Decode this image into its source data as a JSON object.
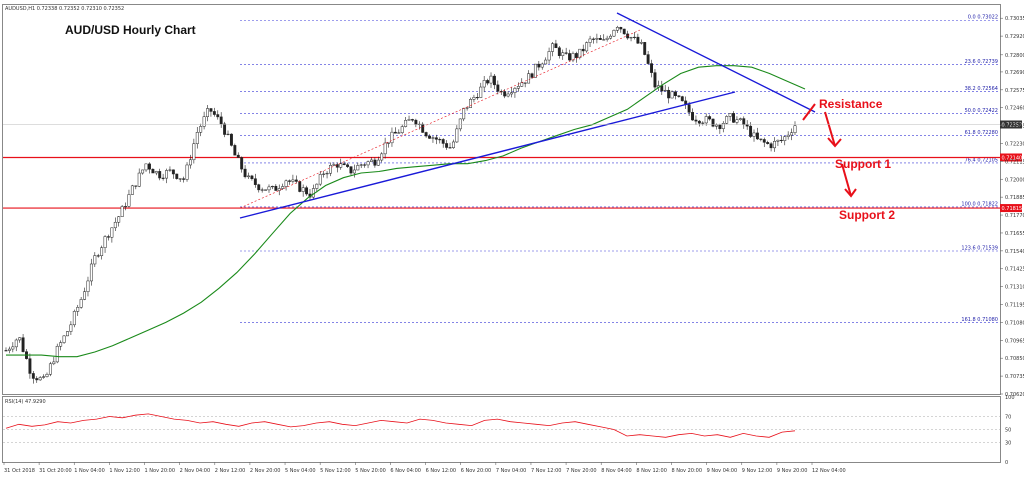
{
  "chart_data": [
    {
      "type": "candlestick",
      "header": "AUDUSD,H1  0.72338 0.72352 0.72310 0.72352",
      "title": "AUD/USD Hourly Chart",
      "ylim": [
        0.7062,
        0.7312
      ],
      "y_ticks": [
        "0.73035",
        "0.72920",
        "0.72800",
        "0.72690",
        "0.72575",
        "0.72460",
        "0.72345",
        "0.72230",
        "0.72115",
        "0.72000",
        "0.71885",
        "0.71770",
        "0.71655",
        "0.71540",
        "0.71425",
        "0.71310",
        "0.71195",
        "0.71080",
        "0.70965",
        "0.70850",
        "0.70735",
        "0.70620"
      ],
      "x_ticks": [
        "31 Oct 2018",
        "31 Oct 20:00",
        "1 Nov 04:00",
        "1 Nov 12:00",
        "1 Nov 20:00",
        "2 Nov 04:00",
        "2 Nov 12:00",
        "2 Nov 20:00",
        "5 Nov 04:00",
        "5 Nov 12:00",
        "5 Nov 20:00",
        "6 Nov 04:00",
        "6 Nov 12:00",
        "6 Nov 20:00",
        "7 Nov 04:00",
        "7 Nov 12:00",
        "7 Nov 20:00",
        "8 Nov 04:00",
        "8 Nov 12:00",
        "8 Nov 20:00",
        "9 Nov 04:00",
        "9 Nov 12:00",
        "9 Nov 20:00",
        "12 Nov 04:00"
      ],
      "current_price": "0.72352",
      "fib_levels": [
        {
          "label": "0.0 0.73022",
          "value": 0.73022
        },
        {
          "label": "23.6 0.72739",
          "value": 0.72739
        },
        {
          "label": "38.2 0.72564",
          "value": 0.72564
        },
        {
          "label": "50.0 0.72422",
          "value": 0.72422
        },
        {
          "label": "61.8 0.72280",
          "value": 0.7228
        },
        {
          "label": "76.4 0.72105",
          "value": 0.72105
        },
        {
          "label": "100.0 0.71822",
          "value": 0.71822
        },
        {
          "label": "123.6 0.71539",
          "value": 0.71539
        },
        {
          "label": "161.8 0.71080",
          "value": 0.7108
        }
      ],
      "support_levels": [
        {
          "label": "Support 1",
          "value": 0.7214,
          "tag": "0.72140"
        },
        {
          "label": "Support 2",
          "value": 0.71815,
          "tag": "0.71815"
        }
      ],
      "resistance_label": "Resistance",
      "close_path": [
        0.709,
        0.7099,
        0.7075,
        0.707,
        0.709,
        0.7105,
        0.7125,
        0.715,
        0.7165,
        0.7178,
        0.7195,
        0.721,
        0.7203,
        0.7205,
        0.72,
        0.723,
        0.7245,
        0.7235,
        0.7215,
        0.72,
        0.7195,
        0.7193,
        0.72,
        0.7195,
        0.719,
        0.7205,
        0.721,
        0.7205,
        0.721,
        0.7212,
        0.7225,
        0.7232,
        0.724,
        0.723,
        0.7225,
        0.722,
        0.7245,
        0.7255,
        0.7265,
        0.7255,
        0.726,
        0.7265,
        0.7275,
        0.7285,
        0.7278,
        0.728,
        0.729,
        0.7288,
        0.73,
        0.7292,
        0.7285,
        0.726,
        0.7255,
        0.725,
        0.724,
        0.7238,
        0.7235,
        0.724,
        0.7235,
        0.7225,
        0.7222,
        0.7225,
        0.7235
      ],
      "ma_path": [
        0.7087,
        0.7087,
        0.7087,
        0.7086,
        0.7086,
        0.7089,
        0.7093,
        0.7098,
        0.7103,
        0.7108,
        0.7114,
        0.7121,
        0.713,
        0.714,
        0.7152,
        0.7165,
        0.7178,
        0.7188,
        0.7196,
        0.7201,
        0.7204,
        0.7205,
        0.7207,
        0.7208,
        0.7209,
        0.721,
        0.721,
        0.7212,
        0.7215,
        0.722,
        0.7224,
        0.7228,
        0.7232,
        0.7235,
        0.724,
        0.7245,
        0.7253,
        0.7261,
        0.7268,
        0.7272,
        0.7273,
        0.7273,
        0.7272,
        0.7268,
        0.7263,
        0.7258
      ],
      "rsi": {
        "label": "RSI(14) 47.9290",
        "ylim": [
          0,
          100
        ],
        "y_ticks": [
          "100",
          "70",
          "50",
          "30",
          "0"
        ],
        "values": [
          52,
          58,
          55,
          57,
          62,
          60,
          64,
          66,
          70,
          68,
          72,
          74,
          70,
          66,
          64,
          60,
          62,
          58,
          55,
          60,
          62,
          58,
          54,
          56,
          60,
          62,
          58,
          56,
          60,
          64,
          62,
          60,
          66,
          64,
          60,
          58,
          56,
          64,
          66,
          62,
          60,
          58,
          56,
          60,
          62,
          58,
          54,
          50,
          40,
          42,
          40,
          38,
          42,
          44,
          40,
          42,
          38,
          44,
          40,
          38,
          46,
          48
        ]
      }
    }
  ]
}
